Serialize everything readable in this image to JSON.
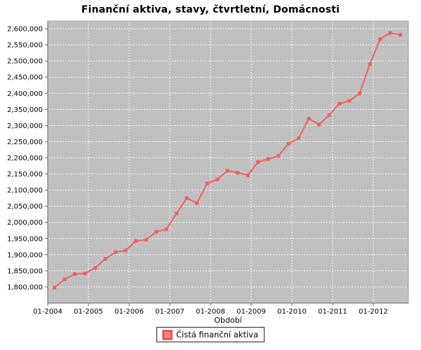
{
  "title": "Finanční aktiva, stavy, čtvrtletní, Domácnosti",
  "legend": {
    "series_label": "Čistá finanční aktiva"
  },
  "chart_data": {
    "type": "line",
    "title": "Finanční aktiva, stavy, čtvrtletní, Domácnosti",
    "xlabel": "Období",
    "ylabel": "",
    "x": [
      "03-2004",
      "06-2004",
      "09-2004",
      "12-2004",
      "03-2005",
      "06-2005",
      "09-2005",
      "12-2005",
      "03-2006",
      "06-2006",
      "09-2006",
      "12-2006",
      "03-2007",
      "06-2007",
      "09-2007",
      "12-2007",
      "03-2008",
      "06-2008",
      "09-2008",
      "12-2008",
      "03-2009",
      "06-2009",
      "09-2009",
      "12-2009",
      "03-2010",
      "06-2010",
      "09-2010",
      "12-2010",
      "03-2011",
      "06-2011",
      "09-2011",
      "12-2011",
      "03-2012",
      "06-2012",
      "09-2012"
    ],
    "series": [
      {
        "name": "Čistá finanční aktiva",
        "color": "#f4605b",
        "values": [
          1798000,
          1824000,
          1840000,
          1842000,
          1859000,
          1887000,
          1908000,
          1913000,
          1943000,
          1946000,
          1971000,
          1979000,
          2028000,
          2075000,
          2060000,
          2121000,
          2133000,
          2160000,
          2154000,
          2146000,
          2187000,
          2196000,
          2206000,
          2244000,
          2261000,
          2322000,
          2303000,
          2332000,
          2368000,
          2377000,
          2400000,
          2490000,
          2568000,
          2587000,
          2581000
        ]
      }
    ],
    "x_tick_labels": [
      "01-2004",
      "01-2005",
      "01-2006",
      "01-2007",
      "01-2008",
      "01-2009",
      "01-2010",
      "01-2011",
      "01-2012"
    ],
    "y_ticks": [
      1800000,
      1850000,
      1900000,
      1950000,
      2000000,
      2050000,
      2100000,
      2150000,
      2200000,
      2250000,
      2300000,
      2350000,
      2400000,
      2450000,
      2500000,
      2550000,
      2600000
    ],
    "ylim": [
      1750000,
      2624000
    ],
    "grid": true,
    "legend_position": "bottom",
    "marker": "square",
    "colors": {
      "series": "#f4605b",
      "plot_bg": "#c0c0c0",
      "grid": "#ffffff",
      "axis": "#666666",
      "outline": "#a0a0a0",
      "text": "#000000"
    }
  }
}
